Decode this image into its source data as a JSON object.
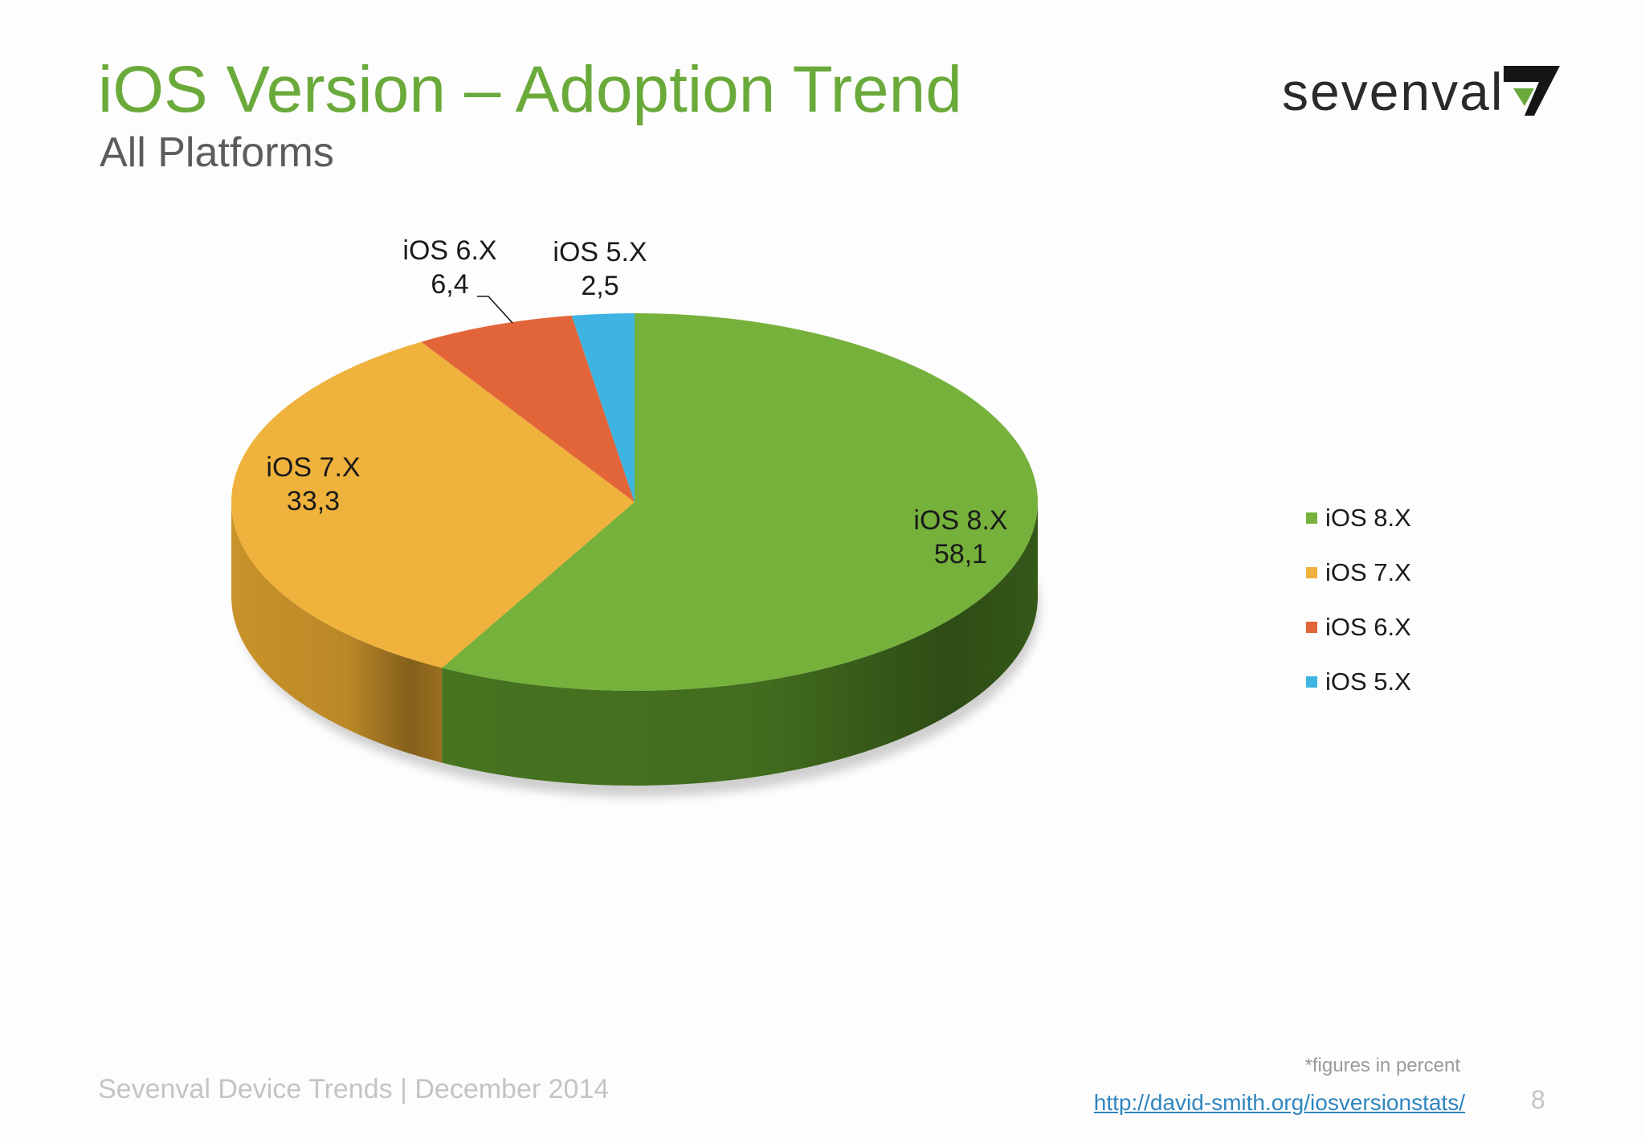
{
  "slide": {
    "title": "iOS Version – Adoption Trend",
    "subtitle": "All Platforms",
    "brand": "sevenval",
    "footer": "Sevenval Device Trends | December 2014",
    "footnote": "*figures in percent",
    "source_link": "http://david-smith.org/iosversionstats/",
    "page_number": "8"
  },
  "chart_data": {
    "type": "pie",
    "title": "",
    "style": "3d",
    "legend_position": "right",
    "categories": [
      "iOS 8.X",
      "iOS 7.X",
      "iOS 6.X",
      "iOS 5.X"
    ],
    "values": [
      58.1,
      33.3,
      6.4,
      2.5
    ],
    "value_labels": [
      "58,1",
      "33,3",
      "6,4",
      "2,5"
    ],
    "colors": [
      "#76b13c",
      "#efb23c",
      "#e2653a",
      "#3db4e2"
    ],
    "side_colors": [
      "#4a7a22",
      "#d49a2c",
      "#c0502a",
      "#2b90bb"
    ]
  },
  "colors": {
    "title": "#6aaa3a",
    "subtitle": "#5c5c5c",
    "link": "#2f86c0",
    "footer": "#c4c4c4"
  }
}
